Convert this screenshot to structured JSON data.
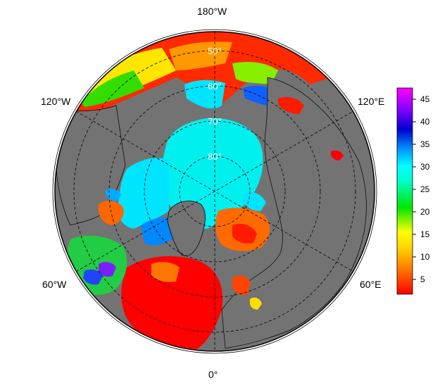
{
  "map": {
    "projection": "north polar stereographic",
    "longitude_labels": {
      "top": "180°W",
      "upper_left": "120°W",
      "upper_right": "120°E",
      "lower_left": "60°W",
      "lower_right": "60°E",
      "bottom": "0°"
    },
    "latitude_labels": [
      "50°",
      "60°",
      "70°",
      "80°"
    ],
    "graticule": "dashed",
    "land_color": "#737373",
    "ocean_background": "#737373",
    "color_scale": [
      "#ff0000",
      "#ffb300",
      "#ffff00",
      "#00e600",
      "#00ffff",
      "#0099ff",
      "#0000d0",
      "#8a00ff",
      "#ff00ff"
    ]
  },
  "colorbar": {
    "min": 1,
    "max": 47,
    "ticks": [
      "5",
      "10",
      "15",
      "20",
      "25",
      "30",
      "35",
      "40",
      "45"
    ]
  }
}
